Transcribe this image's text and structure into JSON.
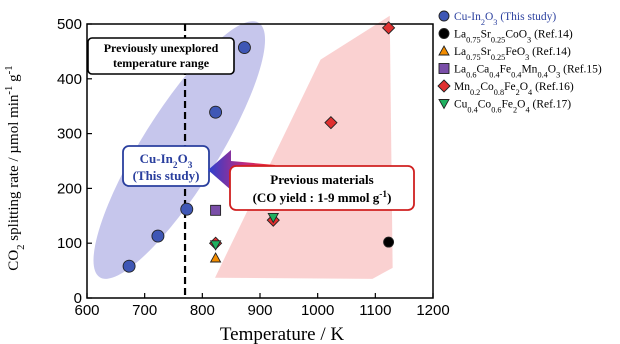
{
  "chart_data": {
    "type": "scatter",
    "xlabel": "Temperature / K",
    "ylabel_parts": [
      "CO",
      "2",
      " splitting rate / µmol min",
      "-1",
      " g",
      "-1"
    ],
    "xlim": [
      600,
      1200
    ],
    "ylim": [
      0,
      500
    ],
    "x_ticks": [
      "600",
      "700",
      "800",
      "900",
      "1000",
      "1100",
      "1200"
    ],
    "y_ticks": [
      "0",
      "100",
      "200",
      "300",
      "400",
      "500"
    ],
    "grid": false,
    "legend_position": "right",
    "vline": {
      "x": 770
    },
    "colors": {
      "this_study": "#3f57b5",
      "la_sr_co": "#000000",
      "la_sr_fe": "#f28c00",
      "la_ca_fe_mn": "#7a4ea8",
      "mn_co_fe": "#e03030",
      "cu_co_fe": "#20b060",
      "ellipse_fill": "#b3b3e6",
      "region_fill": "#f9cccc",
      "callout_blue": "#2a3f9e",
      "callout_red": "#d02020"
    },
    "series": [
      {
        "legend_parts": [
          "Cu-In",
          "2",
          "O",
          "3",
          " (This study)"
        ],
        "marker": "circle",
        "color_key": "this_study",
        "points": [
          [
            673,
            58
          ],
          [
            723,
            113
          ],
          [
            773,
            162
          ],
          [
            823,
            339
          ],
          [
            873,
            457
          ]
        ]
      },
      {
        "legend_parts": [
          "La",
          "0.75",
          "Sr",
          "0.25",
          "CoO",
          "3",
          " (Ref.14)"
        ],
        "marker": "circle",
        "color_key": "la_sr_co",
        "points": [
          [
            1123,
            102
          ]
        ]
      },
      {
        "legend_parts": [
          "La",
          "0.75",
          "Sr",
          "0.25",
          "FeO",
          "3",
          " (Ref.14)"
        ],
        "marker": "triangle-up",
        "color_key": "la_sr_fe",
        "points": [
          [
            823,
            73
          ]
        ]
      },
      {
        "legend_parts": [
          "La",
          "0.6",
          "Ca",
          "0.4",
          "Fe",
          "0.4",
          "Mn",
          "0.4",
          "O",
          "3",
          " (Ref.15)"
        ],
        "marker": "square",
        "color_key": "la_ca_fe_mn",
        "points": [
          [
            823,
            160
          ]
        ]
      },
      {
        "legend_parts": [
          "Mn",
          "0.2",
          "Co",
          "0.8",
          "Fe",
          "2",
          "O",
          "4",
          " (Ref.16)"
        ],
        "marker": "diamond",
        "color_key": "mn_co_fe",
        "points": [
          [
            823,
            100
          ],
          [
            923,
            142
          ],
          [
            1023,
            320
          ],
          [
            1123,
            493
          ]
        ]
      },
      {
        "legend_parts": [
          "Cu",
          "0.4",
          "Co",
          "0.6",
          "Fe",
          "2",
          "O",
          "4",
          " (Ref.17)"
        ],
        "marker": "triangle-down",
        "color_key": "cu_co_fe",
        "points": [
          [
            823,
            97
          ],
          [
            923,
            147
          ]
        ]
      }
    ],
    "annotations": {
      "unexplored": [
        "Previously unexplored",
        "temperature range"
      ],
      "this_study_box": {
        "line1_parts": [
          "Cu-In",
          "2",
          "O",
          "3"
        ],
        "line2": "(This study)"
      },
      "previous_box": {
        "line1": "Previous materials",
        "line2_parts": [
          "(CO yield : 1-9 mmol g",
          "-1",
          ")"
        ]
      }
    }
  }
}
